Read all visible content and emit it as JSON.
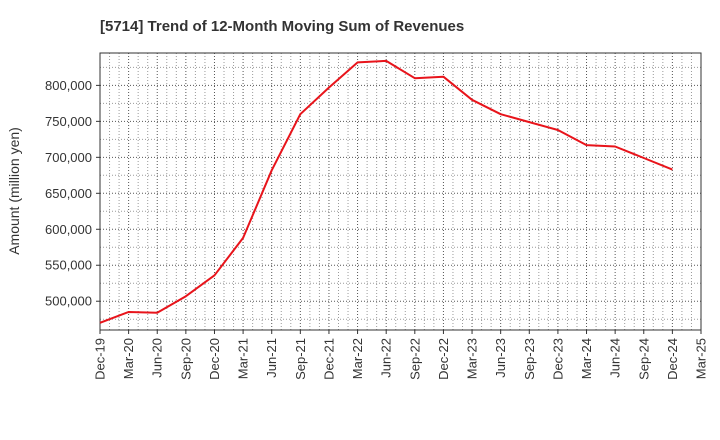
{
  "chart_data": {
    "type": "line",
    "title": "[5714]  Trend of 12-Month Moving Sum of Revenues",
    "xlabel": "",
    "ylabel": "Amount (million yen)",
    "x": [
      "Dec-19",
      "Mar-20",
      "Jun-20",
      "Sep-20",
      "Dec-20",
      "Mar-21",
      "Jun-21",
      "Sep-21",
      "Dec-21",
      "Mar-22",
      "Jun-22",
      "Sep-22",
      "Dec-22",
      "Mar-23",
      "Jun-23",
      "Sep-23",
      "Dec-23",
      "Mar-24",
      "Jun-24",
      "Sep-24",
      "Dec-24"
    ],
    "x_ticks": [
      "Dec-19",
      "Mar-20",
      "Jun-20",
      "Sep-20",
      "Dec-20",
      "Mar-21",
      "Jun-21",
      "Sep-21",
      "Dec-21",
      "Mar-22",
      "Jun-22",
      "Sep-22",
      "Dec-22",
      "Mar-23",
      "Jun-23",
      "Sep-23",
      "Dec-23",
      "Mar-24",
      "Jun-24",
      "Sep-24",
      "Dec-24",
      "Mar-25"
    ],
    "y_ticks": [
      "500,000",
      "550,000",
      "600,000",
      "650,000",
      "700,000",
      "750,000",
      "800,000"
    ],
    "y_tick_values": [
      500000,
      550000,
      600000,
      650000,
      700000,
      750000,
      800000
    ],
    "series": [
      {
        "name": "",
        "color": "#e8141b",
        "values": [
          470000,
          485000,
          484000,
          507000,
          536000,
          588000,
          682000,
          760000,
          797000,
          832000,
          834000,
          810000,
          812000,
          780000,
          760000,
          749000,
          738000,
          717000,
          715000,
          699000,
          683000
        ]
      }
    ],
    "ylim": [
      460000,
      845000
    ],
    "grid": true,
    "legend": "none"
  }
}
